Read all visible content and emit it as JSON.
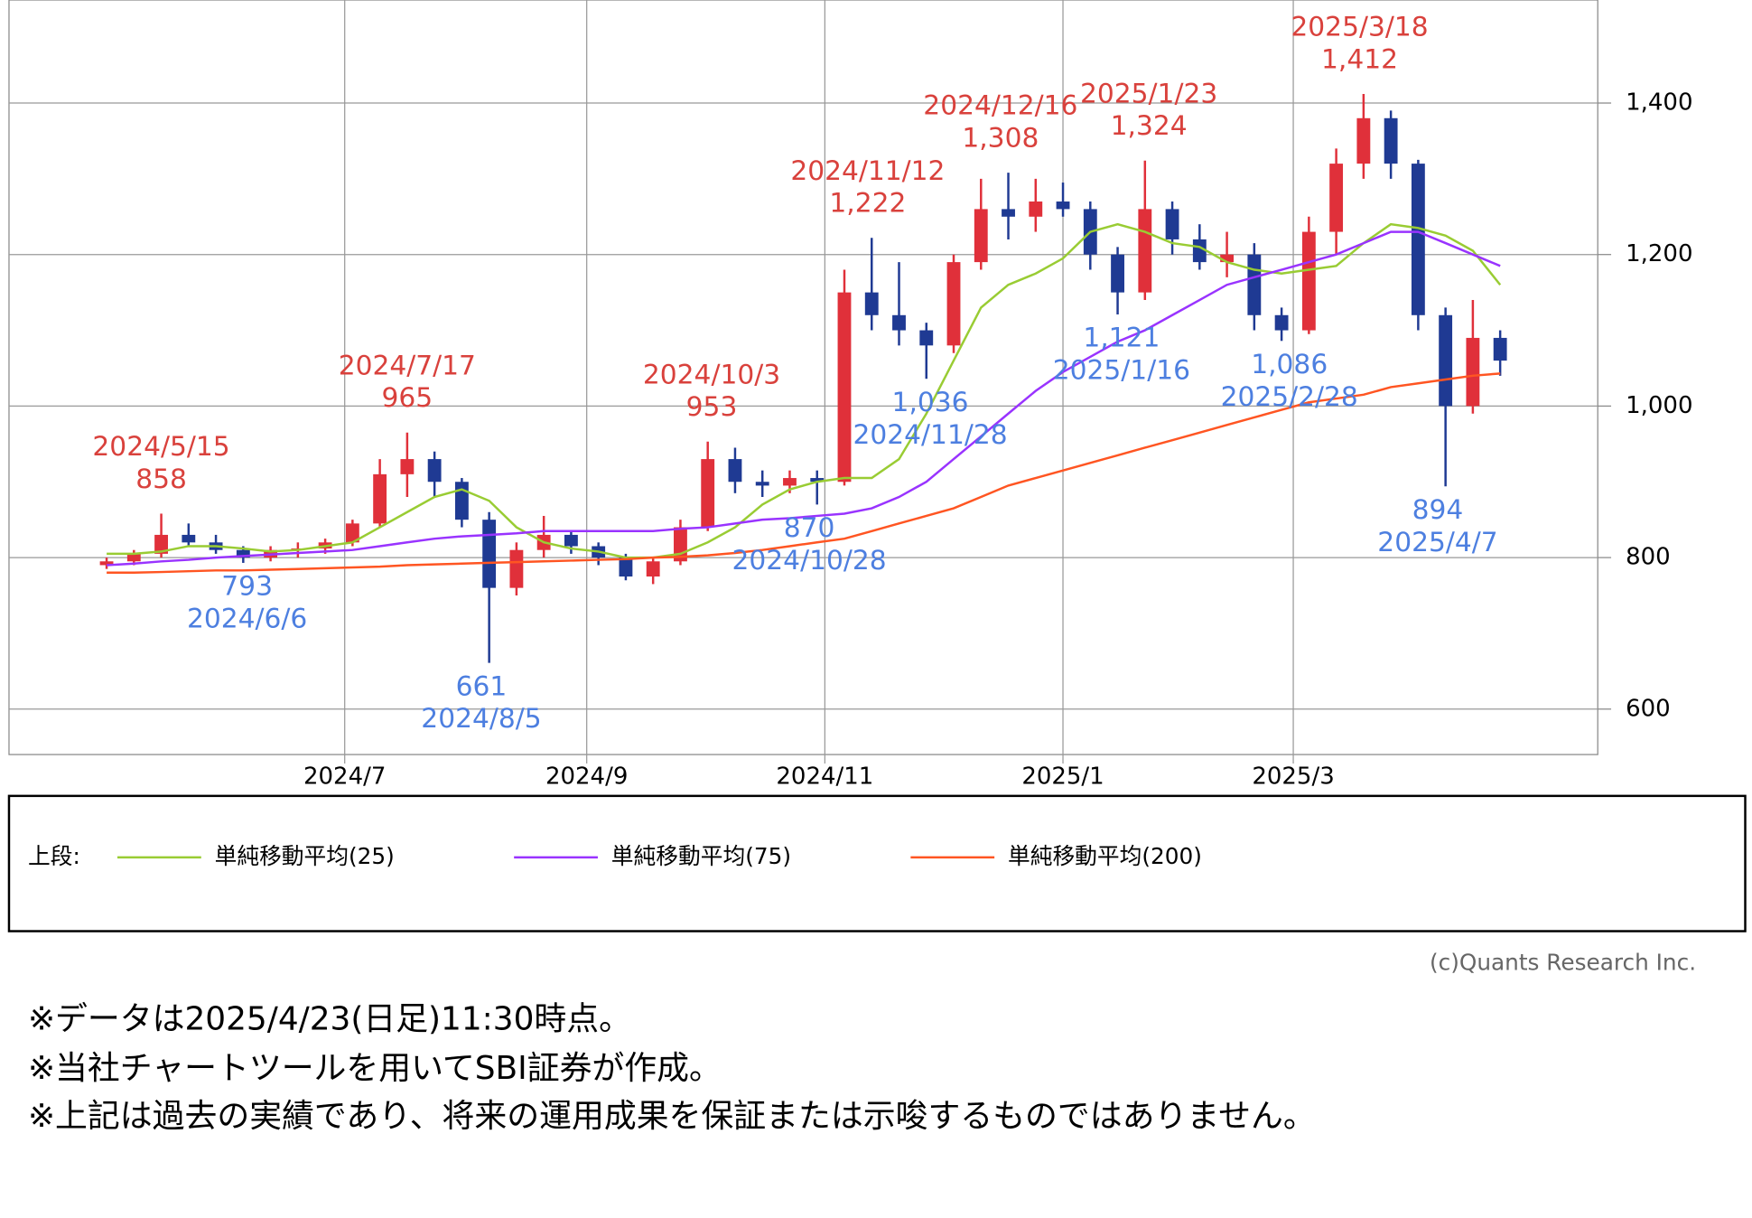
{
  "chart_data": {
    "type": "candlestick",
    "xlim": [
      "2024/4/6",
      "2025/5/18"
    ],
    "xticks": [
      {
        "value": "2024/7/1",
        "label": "2024/7"
      },
      {
        "value": "2024/9/1",
        "label": "2024/9"
      },
      {
        "value": "2024/11/1",
        "label": "2024/11"
      },
      {
        "value": "2025/1/1",
        "label": "2025/1"
      },
      {
        "value": "2025/3/1",
        "label": "2025/3"
      }
    ],
    "ylim": [
      540,
      1536
    ],
    "yticks": [
      600,
      800,
      {
        "value": 1000,
        "label": "1,000"
      },
      {
        "value": 1200,
        "label": "1,200"
      },
      {
        "value": 1400,
        "label": "1,400"
      }
    ],
    "grid": true,
    "up_color": "#e0303a",
    "down_color": "#1f3a93",
    "x": [
      "2024/4/29",
      "2024/5/6",
      "2024/5/13",
      "2024/5/20",
      "2024/5/27",
      "2024/6/3",
      "2024/6/10",
      "2024/6/17",
      "2024/6/24",
      "2024/7/1",
      "2024/7/8",
      "2024/7/15",
      "2024/7/22",
      "2024/7/29",
      "2024/8/5",
      "2024/8/12",
      "2024/8/19",
      "2024/8/26",
      "2024/9/2",
      "2024/9/9",
      "2024/9/16",
      "2024/9/23",
      "2024/9/30",
      "2024/10/7",
      "2024/10/14",
      "2024/10/21",
      "2024/10/28",
      "2024/11/4",
      "2024/11/11",
      "2024/11/18",
      "2024/11/25",
      "2024/12/2",
      "2024/12/9",
      "2024/12/16",
      "2024/12/23",
      "2024/12/30",
      "2025/1/6",
      "2025/1/13",
      "2025/1/20",
      "2025/1/27",
      "2025/2/3",
      "2025/2/10",
      "2025/2/17",
      "2025/2/24",
      "2025/3/3",
      "2025/3/10",
      "2025/3/17",
      "2025/3/24",
      "2025/3/31",
      "2025/4/7",
      "2025/4/14",
      "2025/4/21"
    ],
    "open": [
      790,
      795,
      805,
      830,
      820,
      810,
      800,
      810,
      812,
      820,
      845,
      910,
      930,
      900,
      850,
      760,
      810,
      830,
      815,
      800,
      775,
      795,
      840,
      930,
      900,
      895,
      905,
      900,
      1150,
      1120,
      1100,
      1080,
      1190,
      1260,
      1250,
      1270,
      1260,
      1200,
      1150,
      1260,
      1220,
      1190,
      1200,
      1120,
      1100,
      1230,
      1320,
      1380,
      1320,
      1120,
      1000,
      1090
    ],
    "high": [
      800,
      810,
      858,
      845,
      830,
      815,
      815,
      820,
      825,
      850,
      930,
      965,
      940,
      905,
      860,
      820,
      855,
      835,
      820,
      805,
      800,
      850,
      953,
      945,
      915,
      915,
      915,
      1180,
      1222,
      1190,
      1110,
      1200,
      1300,
      1308,
      1300,
      1295,
      1270,
      1210,
      1324,
      1270,
      1240,
      1230,
      1215,
      1130,
      1250,
      1340,
      1412,
      1390,
      1325,
      1130,
      1140,
      1100
    ],
    "low": [
      785,
      790,
      800,
      815,
      805,
      793,
      795,
      800,
      805,
      815,
      840,
      880,
      880,
      840,
      661,
      750,
      800,
      805,
      790,
      770,
      765,
      790,
      835,
      885,
      880,
      885,
      870,
      895,
      1100,
      1080,
      1036,
      1070,
      1180,
      1220,
      1230,
      1250,
      1180,
      1121,
      1140,
      1200,
      1180,
      1170,
      1100,
      1086,
      1095,
      1200,
      1300,
      1300,
      1100,
      894,
      990,
      1040
    ],
    "close": [
      795,
      805,
      830,
      820,
      810,
      800,
      810,
      812,
      820,
      845,
      910,
      930,
      900,
      850,
      760,
      810,
      830,
      815,
      800,
      775,
      795,
      840,
      930,
      900,
      895,
      905,
      900,
      1150,
      1120,
      1100,
      1080,
      1190,
      1260,
      1250,
      1270,
      1260,
      1200,
      1150,
      1260,
      1220,
      1190,
      1200,
      1120,
      1100,
      1230,
      1320,
      1380,
      1320,
      1120,
      1000,
      1090,
      1060
    ],
    "series": [
      {
        "name": "単純移動平均(25)",
        "color": "#99cc33",
        "values": [
          805,
          805,
          808,
          815,
          815,
          812,
          808,
          810,
          815,
          820,
          840,
          860,
          880,
          890,
          875,
          840,
          820,
          812,
          808,
          800,
          800,
          805,
          820,
          840,
          870,
          890,
          900,
          905,
          905,
          930,
          990,
          1060,
          1130,
          1160,
          1175,
          1195,
          1230,
          1240,
          1230,
          1215,
          1210,
          1190,
          1180,
          1175,
          1180,
          1185,
          1215,
          1240,
          1235,
          1225,
          1205,
          1160
        ]
      },
      {
        "name": "単純移動平均(75)",
        "color": "#9933ff",
        "values": [
          790,
          792,
          795,
          797,
          800,
          802,
          804,
          806,
          808,
          810,
          815,
          820,
          825,
          828,
          830,
          832,
          835,
          835,
          835,
          835,
          835,
          838,
          840,
          845,
          850,
          852,
          855,
          858,
          865,
          880,
          900,
          930,
          960,
          990,
          1020,
          1045,
          1065,
          1085,
          1100,
          1120,
          1140,
          1160,
          1170,
          1180,
          1190,
          1200,
          1215,
          1230,
          1230,
          1215,
          1200,
          1185
        ]
      },
      {
        "name": "単純移動平均(200)",
        "color": "#ff5522",
        "values": [
          780,
          780,
          781,
          782,
          783,
          783,
          784,
          785,
          786,
          787,
          788,
          790,
          791,
          792,
          793,
          794,
          795,
          796,
          797,
          798,
          800,
          801,
          803,
          806,
          810,
          815,
          820,
          825,
          835,
          845,
          855,
          865,
          880,
          895,
          905,
          915,
          925,
          935,
          945,
          955,
          965,
          975,
          985,
          995,
          1005,
          1010,
          1015,
          1025,
          1030,
          1035,
          1040,
          1043
        ]
      }
    ],
    "annotations": [
      {
        "date": "2024/5/15",
        "value": 858,
        "color": "#d9413c"
      },
      {
        "date": "2024/6/6",
        "value": 793,
        "color": "#4d7fe0"
      },
      {
        "date": "2024/7/17",
        "value": 965,
        "color": "#d9413c"
      },
      {
        "date": "2024/8/5",
        "value": 661,
        "color": "#4d7fe0"
      },
      {
        "date": "2024/10/3",
        "value": 953,
        "color": "#d9413c"
      },
      {
        "date": "2024/10/28",
        "value": 870,
        "color": "#4d7fe0"
      },
      {
        "date": "2024/11/12",
        "value": 1222,
        "value_label": "1,222",
        "color": "#d9413c"
      },
      {
        "date": "2024/11/28",
        "value": 1036,
        "value_label": "1,036",
        "color": "#4d7fe0"
      },
      {
        "date": "2024/12/16",
        "value": 1308,
        "value_label": "1,308",
        "color": "#d9413c"
      },
      {
        "date": "2025/1/16",
        "value": 1121,
        "value_label": "1,121",
        "color": "#4d7fe0"
      },
      {
        "date": "2025/1/23",
        "value": 1324,
        "value_label": "1,324",
        "color": "#d9413c"
      },
      {
        "date": "2025/2/28",
        "value": 1086,
        "value_label": "1,086",
        "color": "#4d7fe0"
      },
      {
        "date": "2025/3/18",
        "value": 1412,
        "value_label": "1,412",
        "color": "#d9413c"
      },
      {
        "date": "2025/4/7",
        "value": 894,
        "color": "#4d7fe0"
      }
    ],
    "legend_label": "上段:"
  },
  "copyright": "(c)Quants Research Inc.",
  "notes": [
    "※データは2025/4/23(日足)11:30時点。",
    "※当社チャートツールを用いてSBI証券が作成。",
    "※上記は過去の実績であり、将来の運用成果を保証または示唆するものではありません。"
  ]
}
